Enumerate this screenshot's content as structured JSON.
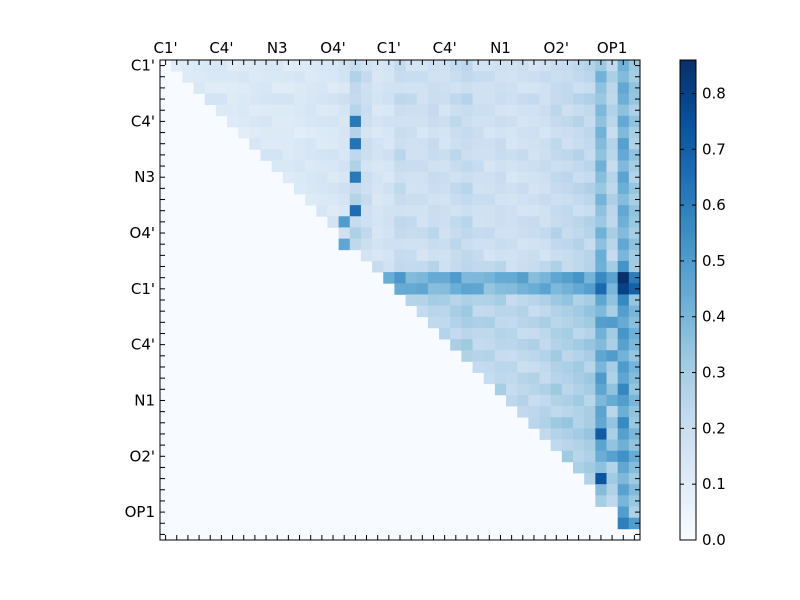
{
  "chart_data": {
    "type": "heatmap",
    "title": "",
    "xlabel": "",
    "ylabel": "",
    "x_tick_labels": [
      "C1'",
      "C4'",
      "N3",
      "O4'",
      "C1'",
      "C4'",
      "N1",
      "O2'",
      "OP1"
    ],
    "y_tick_labels": [
      "C1'",
      "C4'",
      "N3",
      "O4'",
      "C1'",
      "C4'",
      "N1",
      "O2'",
      "OP1"
    ],
    "tick_every_n_cells": 5,
    "n_cells": 43,
    "colormap": "Blues",
    "colorbar": {
      "vmin": 0.0,
      "vmax": 0.86,
      "ticks": [
        "0.0",
        "0.1",
        "0.2",
        "0.3",
        "0.4",
        "0.5",
        "0.6",
        "0.7",
        "0.8"
      ]
    },
    "upper_triangle_only": true,
    "matrix": {
      "row_levels": [
        0.12,
        0.14,
        0.11,
        0.16,
        0.12,
        0.13,
        0.1,
        0.12,
        0.15,
        0.13,
        0.12,
        0.14,
        0.13,
        0.11,
        0.15,
        0.17,
        0.14,
        0.13,
        0.2,
        0.62,
        0.58,
        0.3,
        0.26,
        0.28,
        0.24,
        0.27,
        0.25,
        0.23,
        0.26,
        0.28,
        0.24,
        0.22,
        0.29,
        0.25,
        0.24,
        0.27,
        0.22,
        0.2,
        0.18,
        0.17,
        0.14,
        0.4,
        0.0
      ],
      "column_levels": [
        0.1,
        0.1,
        0.11,
        0.12,
        0.13,
        0.11,
        0.1,
        0.11,
        0.12,
        0.13,
        0.12,
        0.11,
        0.12,
        0.13,
        0.14,
        0.14,
        0.17,
        0.36,
        0.24,
        0.16,
        0.18,
        0.28,
        0.24,
        0.22,
        0.26,
        0.22,
        0.28,
        0.3,
        0.24,
        0.22,
        0.24,
        0.2,
        0.22,
        0.22,
        0.24,
        0.3,
        0.3,
        0.32,
        0.34,
        0.62,
        0.36,
        0.72,
        0.5
      ],
      "hot_cells": [
        [
          19,
          41,
          0.86
        ],
        [
          20,
          41,
          0.8
        ],
        [
          20,
          42,
          0.7
        ],
        [
          41,
          39,
          0.86
        ],
        [
          41,
          41,
          0.6
        ],
        [
          41,
          42,
          0.5
        ],
        [
          33,
          39,
          0.72
        ],
        [
          37,
          39,
          0.74
        ],
        [
          40,
          38,
          0.48
        ],
        [
          39,
          39,
          0.3
        ],
        [
          39,
          41,
          0.4
        ],
        [
          10,
          17,
          0.62
        ],
        [
          13,
          17,
          0.66
        ],
        [
          5,
          17,
          0.62
        ],
        [
          7,
          17,
          0.64
        ],
        [
          14,
          16,
          0.5
        ],
        [
          16,
          16,
          0.46
        ],
        [
          23,
          40,
          0.5
        ],
        [
          26,
          40,
          0.5
        ],
        [
          30,
          40,
          0.44
        ],
        [
          35,
          40,
          0.48
        ],
        [
          42,
          42,
          0.0
        ]
      ]
    }
  }
}
